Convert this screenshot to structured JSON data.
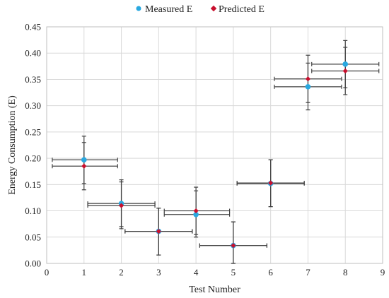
{
  "chart_data": {
    "type": "scatter",
    "xlabel": "Test Number",
    "ylabel": "Energy Consumption (E)",
    "xlim": [
      0,
      9
    ],
    "ylim": [
      0,
      0.45
    ],
    "x_ticks": [
      "0",
      "1",
      "2",
      "3",
      "4",
      "5",
      "6",
      "7",
      "8",
      "9"
    ],
    "y_ticks": [
      "0.00",
      "0.05",
      "0.10",
      "0.15",
      "0.20",
      "0.25",
      "0.30",
      "0.35",
      "0.40",
      "0.45"
    ],
    "grid": true,
    "legend": "top-center",
    "series": [
      {
        "name": "Measured E",
        "color": "#29a8e0",
        "points": [
          {
            "x": 1,
            "y": 0.197,
            "x_lo": 0.15,
            "x_hi": 1.9,
            "y_lo": 0.152,
            "y_hi": 0.242
          },
          {
            "x": 2,
            "y": 0.114,
            "x_lo": 1.1,
            "x_hi": 2.9,
            "y_lo": 0.07,
            "y_hi": 0.159
          },
          {
            "x": 3,
            "y": 0.061,
            "x_lo": 2.1,
            "x_hi": 3.9,
            "y_lo": 0.016,
            "y_hi": 0.105
          },
          {
            "x": 4,
            "y": 0.093,
            "x_lo": 3.15,
            "x_hi": 4.9,
            "y_lo": 0.05,
            "y_hi": 0.138
          },
          {
            "x": 5,
            "y": 0.034,
            "x_lo": 4.1,
            "x_hi": 5.9,
            "y_lo": 0.0,
            "y_hi": 0.079
          },
          {
            "x": 6,
            "y": 0.152,
            "x_lo": 5.1,
            "x_hi": 6.9,
            "y_lo": 0.108,
            "y_hi": 0.197
          },
          {
            "x": 7,
            "y": 0.336,
            "x_lo": 6.1,
            "x_hi": 7.9,
            "y_lo": 0.292,
            "y_hi": 0.381
          },
          {
            "x": 8,
            "y": 0.379,
            "x_lo": 7.1,
            "x_hi": 8.9,
            "y_lo": 0.334,
            "y_hi": 0.424
          }
        ]
      },
      {
        "name": "Predicted E",
        "color": "#c8102e",
        "points": [
          {
            "x": 1,
            "y": 0.185,
            "x_lo": 0.15,
            "x_hi": 1.9,
            "y_lo": 0.14,
            "y_hi": 0.23
          },
          {
            "x": 2,
            "y": 0.11,
            "x_lo": 1.1,
            "x_hi": 2.9,
            "y_lo": 0.066,
            "y_hi": 0.155
          },
          {
            "x": 3,
            "y": 0.061,
            "x_lo": 2.1,
            "x_hi": 3.9,
            "y_lo": 0.016,
            "y_hi": 0.105
          },
          {
            "x": 4,
            "y": 0.1,
            "x_lo": 3.15,
            "x_hi": 4.9,
            "y_lo": 0.055,
            "y_hi": 0.145
          },
          {
            "x": 5,
            "y": 0.034,
            "x_lo": 4.1,
            "x_hi": 5.9,
            "y_lo": 0.0,
            "y_hi": 0.079
          },
          {
            "x": 6,
            "y": 0.153,
            "x_lo": 5.1,
            "x_hi": 6.9,
            "y_lo": 0.108,
            "y_hi": 0.197
          },
          {
            "x": 7,
            "y": 0.351,
            "x_lo": 6.1,
            "x_hi": 7.9,
            "y_lo": 0.306,
            "y_hi": 0.396
          },
          {
            "x": 8,
            "y": 0.366,
            "x_lo": 7.1,
            "x_hi": 8.9,
            "y_lo": 0.321,
            "y_hi": 0.411
          }
        ]
      }
    ]
  }
}
